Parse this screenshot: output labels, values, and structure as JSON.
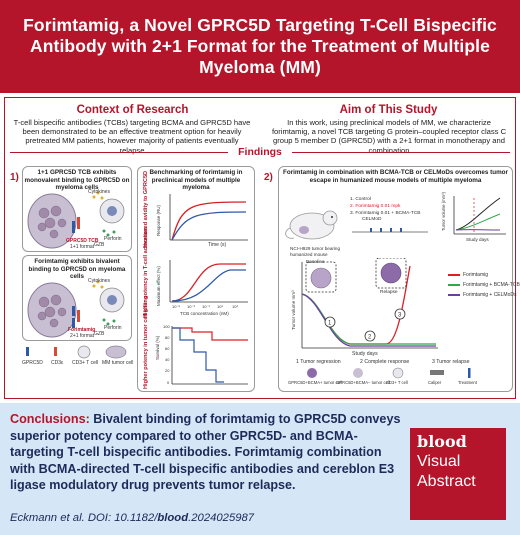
{
  "title": "Forimtamig, a Novel GPRC5D Targeting T-Cell Bispecific Antibody with 2+1 Format for the Treatment of Multiple Myeloma (MM)",
  "context": {
    "heading": "Context of Research",
    "text": "T-cell bispecific antibodies (TCBs) targeting BCMA and GPRC5D have been demonstrated to be an effective treatment option for heavily pretreated MM patients, however majority of patients eventually relapse"
  },
  "aim": {
    "heading": "Aim of This Study",
    "text": "In this work, using preclinical models of MM, we characterize forimtamig, a novel TCB targeting G protein–coupled receptor class C group 5 member D (GPRC5D) with a 2+1 format in monotherapy and combination"
  },
  "findings_label": "Findings",
  "finding1": {
    "number": "1)",
    "box_a_title": "1+1 GPRC5D TCB exhibits monovalent binding to GPRC5D on myeloma cells",
    "box_a_labels": [
      "Cytokines",
      "Perforin",
      "GZB",
      "GPRC5D TCB",
      "1+1 format"
    ],
    "box_b_title": "Forimtamig exhibits bivalent binding to GPRC5D on myeloma cells",
    "box_b_labels": [
      "Cytokines",
      "Perforin",
      "GZB",
      "Forimtamig",
      "2+1 format"
    ],
    "bench_title": "Benchmarking of forimtamig in preclinical models of multiple myeloma",
    "chart1": {
      "ylabel": "Response (RU)",
      "xlabel": "Time (s)",
      "side": "Increased avidity to GPRC5D"
    },
    "chart2": {
      "ylabel": "Maximum effect (%)",
      "xlabel": "TCB concentration (nM)",
      "side": "Higher potency in T-cell activation",
      "ticks": [
        "10⁻⁵",
        "10⁻³",
        "10⁻¹",
        "10¹",
        "10³"
      ]
    },
    "chart3": {
      "ylabel": "Survival (%)",
      "side": "Higher potency in tumor cell killing",
      "yticks": [
        "100",
        "80",
        "60",
        "40",
        "20",
        "0"
      ]
    },
    "legend": [
      "GPRC5D",
      "CD3ε",
      "CD3+ T cell",
      "MM tumor cell"
    ]
  },
  "finding2": {
    "number": "2)",
    "title": "Forimtamig in combination with BCMA-TCB or CELMoDs overcomes tumor escape in humanized mouse models of multiple myeloma",
    "treatments": [
      "1. Control",
      "2. Forimtamig 0.01 mpk",
      "3. Forimtamig 0.01 + BCMA-TCB",
      "CELMoD"
    ],
    "mouse_label": "NCI-H929 tumor bearing humanized mouse",
    "mini_axis": {
      "ylabel": "Tumor volume (mm³)",
      "xlabel": "Study days"
    },
    "big_axis": {
      "ylabel": "Tumor volume mm³",
      "xlabel": "Study days"
    },
    "baseline": "Baseline",
    "relapse": "Relapse",
    "series": [
      {
        "name": "Forimtamig",
        "color": "#d92027"
      },
      {
        "name": "Forimtamig + BCMA-TCB",
        "color": "#2ea84a"
      },
      {
        "name": "Forimtamig + CELMoDs",
        "color": "#6b3fa0"
      }
    ],
    "outcomes": [
      "1  Tumor regression",
      "2  Complete response",
      "3  Tumor relapse"
    ],
    "legend": [
      "GPRC5D+BCMA+ tumor cell",
      "GPRC5D+BCMA− tumor cell",
      "CD3+ T cell",
      "Caliper",
      "Treatment"
    ]
  },
  "conclusion": {
    "lead": "Conclusions:",
    "text": "Bivalent binding of forimtamig to GPRC5D conveys superior potency compared to other GPRC5D- and BCMA-targeting T-cell bispecific antibodies. Forimtamig combination with BCMA-directed T-cell bispecific antibodies and cereblon E3 ligase modulatory drug prevents tumor relapse."
  },
  "citation": {
    "prefix": "Eckmann et al. DOI: 10.1182/",
    "bold": "blood",
    "suffix": ".2024025987"
  },
  "badge": {
    "blood": "blood",
    "line1": "Visual",
    "line2": "Abstract"
  }
}
